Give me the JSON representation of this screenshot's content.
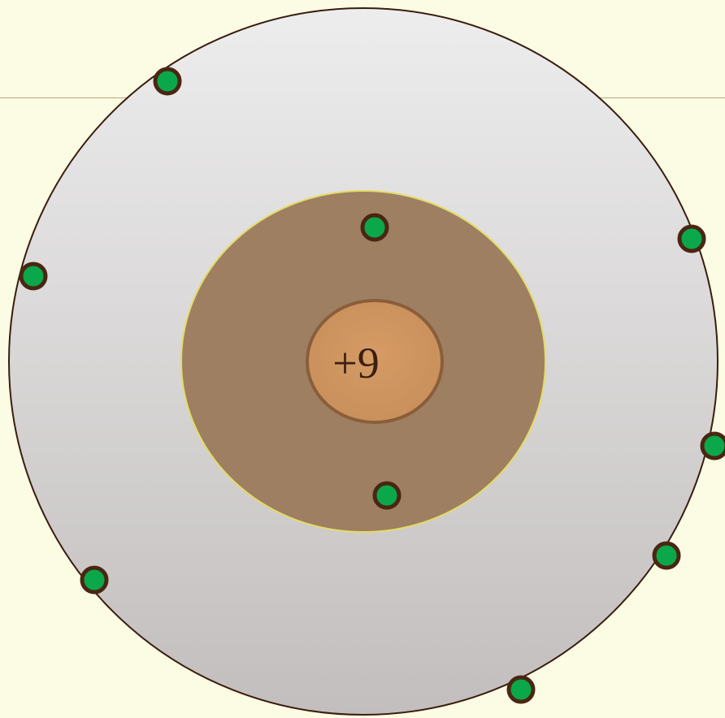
{
  "diagram": {
    "nucleus": {
      "charge_label": "+9"
    },
    "shells": [
      {
        "name": "inner-shell",
        "electrons": 2
      },
      {
        "name": "outer-shell",
        "electrons": 7
      }
    ],
    "colors": {
      "background": "#fcfce4",
      "outer_shell": "#e2e0e0",
      "inner_shell": "#9e7f62",
      "nucleus": "#cf9660",
      "electron": "#0aa84a",
      "electron_outline": "#4a2612"
    }
  }
}
